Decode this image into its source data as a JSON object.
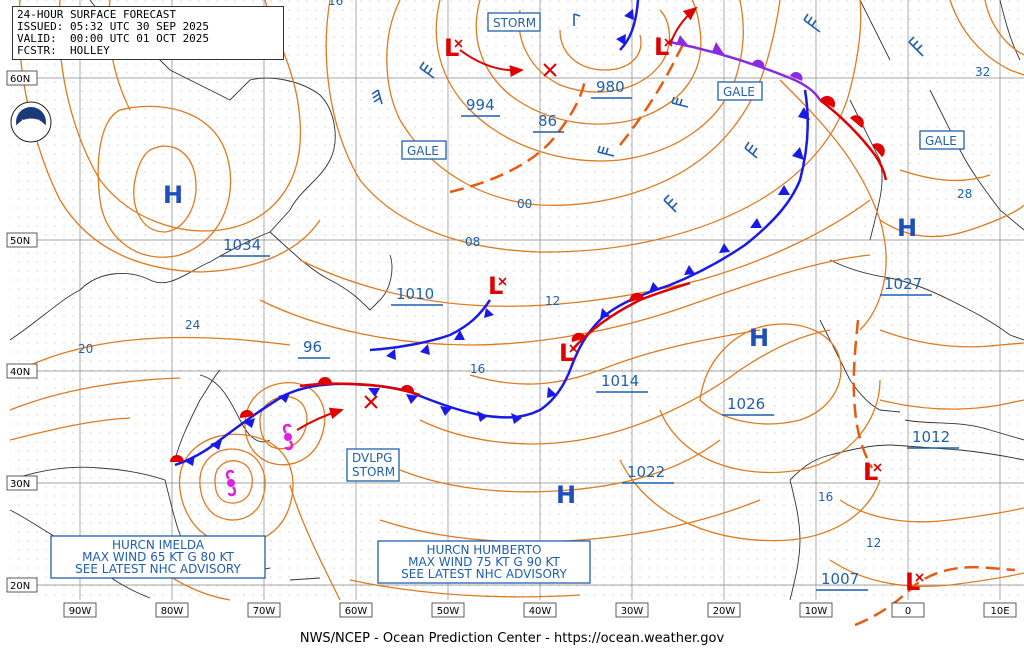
{
  "header": {
    "title": "24-HOUR SURFACE FORECAST",
    "issued": "ISSUED: 05:32 UTC 30 SEP 2025",
    "valid": "VALID:  00:00 UTC 01 OCT 2025",
    "forecaster": "FCSTR:  HOLLEY"
  },
  "logo_text": "NOAA",
  "footer": "NWS/NCEP - Ocean Prediction Center - https://ocean.weather.gov",
  "lat_labels": [
    "60N",
    "50N",
    "40N",
    "30N",
    "20N"
  ],
  "lon_labels": [
    "90W",
    "80W",
    "70W",
    "60W",
    "50W",
    "40W",
    "30W",
    "20W",
    "10W",
    "0",
    "10E"
  ],
  "pressure_centers": [
    {
      "type": "H",
      "value": "1034"
    },
    {
      "type": "H",
      "value": "1027"
    },
    {
      "type": "H",
      "value": "1026"
    },
    {
      "type": "H",
      "value": "1022"
    },
    {
      "type": "L",
      "value": "994"
    },
    {
      "type": "L",
      "value": "980"
    },
    {
      "type": "L",
      "value": "1010"
    },
    {
      "type": "L",
      "value": "1014"
    },
    {
      "type": "L",
      "value": "1012"
    },
    {
      "type": "L",
      "value": "1007"
    }
  ],
  "center_labels": {
    "h_label": "H",
    "l_label": "L",
    "v1034": "1034",
    "v1027": "1027",
    "v1026": "1026",
    "v1022": "1022",
    "v994": "994",
    "v980": "980",
    "v1010": "1010",
    "v1014": "1014",
    "v1012": "1012",
    "v1007": "1007",
    "v96": "96",
    "v86": "86"
  },
  "isobar_labels": [
    "16",
    "00",
    "08",
    "12",
    "16",
    "24",
    "20",
    "32",
    "28",
    "16",
    "12"
  ],
  "warnings": [
    "STORM",
    "GALE",
    "GALE",
    "GALE",
    "DVLPG STORM"
  ],
  "warning_labels": {
    "storm": "STORM",
    "gale1": "GALE",
    "gale2": "GALE",
    "gale3": "GALE",
    "dvlpg1": "DVLPG",
    "dvlpg2": "STORM"
  },
  "hurricanes": [
    {
      "name": "HURCN IMELDA",
      "line1": "HURCN IMELDA",
      "line2": "MAX WIND 65 KT G 80 KT",
      "line3": "SEE LATEST NHC ADVISORY"
    },
    {
      "name": "HURCN HUMBERTO",
      "line1": "HURCN HUMBERTO",
      "line2": "MAX WIND 75 KT G 90 KT",
      "line3": "SEE LATEST NHC ADVISORY"
    }
  ],
  "colors": {
    "isobar": "#e07a1f",
    "high": "#1f4fbf",
    "low": "#e00000",
    "cold_front": "#1a1ae6",
    "warm_front": "#e00000",
    "occluded": "#8a2be2",
    "trough": "#e85a10",
    "coast": "#333333",
    "grid": "#b0b0b0",
    "label": "#1f5fae",
    "hurricane": "#e020e0"
  }
}
